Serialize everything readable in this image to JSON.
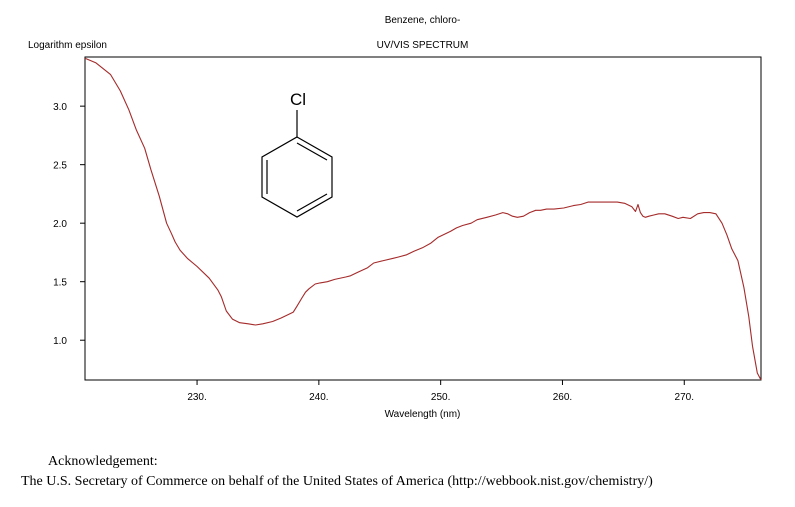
{
  "header": {
    "compound": "Benzene, chloro-",
    "spectrum_type": "UV/VIS SPECTRUM"
  },
  "molecule": {
    "substituent": "Cl"
  },
  "acknowledgement": {
    "title": "Acknowledgement:",
    "text": "The U.S. Secretary of Commerce on behalf of the United States of America (http://webbook.nist.gov/chemistry/)"
  },
  "chart_data": {
    "type": "line",
    "title": "UV/VIS SPECTRUM",
    "xlabel": "Wavelength (nm)",
    "ylabel": "Logarithm epsilon",
    "xlim": [
      220.8,
      276.3
    ],
    "ylim": [
      0.66,
      3.42
    ],
    "xticks": [
      230,
      240,
      250,
      260,
      270
    ],
    "xtick_labels": [
      "230.",
      "240.",
      "250.",
      "260.",
      "270."
    ],
    "yticks": [
      1.0,
      1.5,
      2.0,
      2.5,
      3.0
    ],
    "ytick_labels": [
      "1.0",
      "1.5",
      "2.0",
      "2.5",
      "3.0"
    ],
    "grid": false,
    "line_color": "#a52a2a",
    "series": [
      {
        "x": [
          220.8,
          221.7,
          222.9,
          223.7,
          224.4,
          225.0,
          225.7,
          226.2,
          226.9,
          227.5,
          227.9,
          228.2,
          228.6,
          229.2,
          230.0,
          231.0,
          231.7,
          232.0,
          232.4,
          232.9,
          233.5,
          234.2,
          234.8,
          235.4,
          236.2,
          236.9,
          237.5,
          237.9,
          238.2,
          238.6,
          238.9,
          239.2,
          239.7,
          240.1,
          240.7,
          241.3,
          242.2,
          242.6,
          243.2,
          244.0,
          244.5,
          245.3,
          246.1,
          246.5,
          247.2,
          247.8,
          248.5,
          249.2,
          249.8,
          250.8,
          251.3,
          251.8,
          252.5,
          253.0,
          253.8,
          254.5,
          255.1,
          255.5,
          255.9,
          256.3,
          256.8,
          257.3,
          257.8,
          258.2,
          258.7,
          259.3,
          260.1,
          260.9,
          261.5,
          262.1,
          262.9,
          263.7,
          264.5,
          265.1,
          265.7,
          266.0,
          266.2,
          266.4,
          266.6,
          266.8,
          267.1,
          267.5,
          267.9,
          268.4,
          269.0,
          269.5,
          269.9,
          270.5,
          271.1,
          271.6,
          272.1,
          272.6,
          273.1,
          273.5,
          273.9,
          274.4,
          274.9,
          275.3,
          275.6,
          276.0,
          276.3
        ],
        "y": [
          3.41,
          3.37,
          3.27,
          3.13,
          2.97,
          2.8,
          2.64,
          2.46,
          2.23,
          2.0,
          1.91,
          1.84,
          1.77,
          1.7,
          1.63,
          1.53,
          1.43,
          1.37,
          1.25,
          1.18,
          1.15,
          1.14,
          1.13,
          1.14,
          1.16,
          1.19,
          1.22,
          1.24,
          1.29,
          1.36,
          1.41,
          1.44,
          1.48,
          1.49,
          1.5,
          1.52,
          1.54,
          1.55,
          1.58,
          1.62,
          1.66,
          1.68,
          1.7,
          1.71,
          1.73,
          1.76,
          1.79,
          1.83,
          1.88,
          1.93,
          1.96,
          1.98,
          2.0,
          2.03,
          2.05,
          2.07,
          2.09,
          2.08,
          2.06,
          2.05,
          2.06,
          2.09,
          2.11,
          2.11,
          2.12,
          2.12,
          2.13,
          2.15,
          2.16,
          2.18,
          2.18,
          2.18,
          2.18,
          2.17,
          2.14,
          2.1,
          2.16,
          2.09,
          2.06,
          2.05,
          2.06,
          2.07,
          2.08,
          2.08,
          2.06,
          2.04,
          2.05,
          2.04,
          2.08,
          2.09,
          2.09,
          2.08,
          2.0,
          1.9,
          1.78,
          1.68,
          1.45,
          1.2,
          0.95,
          0.72,
          0.66
        ]
      }
    ]
  }
}
